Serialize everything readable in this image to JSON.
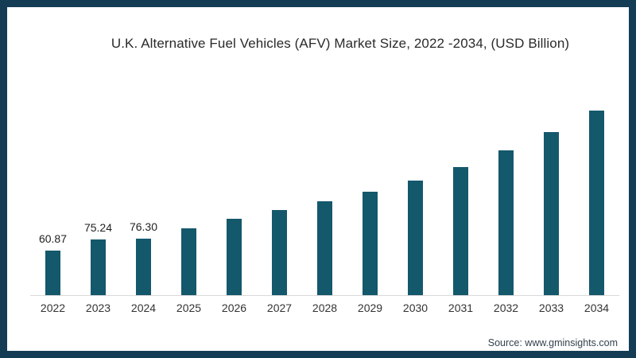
{
  "frame": {
    "border_color": "#153C55",
    "background_color": "#ffffff"
  },
  "source_label": "Source: www.gminsights.com",
  "chart_data": {
    "type": "bar",
    "title": "U.K. Alternative Fuel Vehicles (AFV) Market Size, 2022 -2034, (USD Billion)",
    "xlabel": "",
    "ylabel": "",
    "categories": [
      "2022",
      "2023",
      "2024",
      "2025",
      "2026",
      "2027",
      "2028",
      "2029",
      "2030",
      "2031",
      "2032",
      "2033",
      "2034"
    ],
    "values": [
      60.87,
      75.24,
      76.3,
      91.0,
      103.3,
      115.5,
      128.1,
      140.7,
      155.8,
      174.4,
      197.0,
      221.8,
      251.2
    ],
    "data_labels": [
      "60.87",
      "75.24",
      "76.30",
      "",
      "",
      "",
      "",
      "",
      "",
      "",
      "",
      "",
      ""
    ],
    "ylim": [
      0,
      260
    ],
    "grid": false,
    "legend": false,
    "bar_color": "#14586C",
    "axis_line_color": "#d9d9d9",
    "label_color": "#222222",
    "tick_color": "#333333",
    "note": "Only the 2022-2024 bars carry visible data labels; 2025-2034 values are estimated from bar heights."
  }
}
